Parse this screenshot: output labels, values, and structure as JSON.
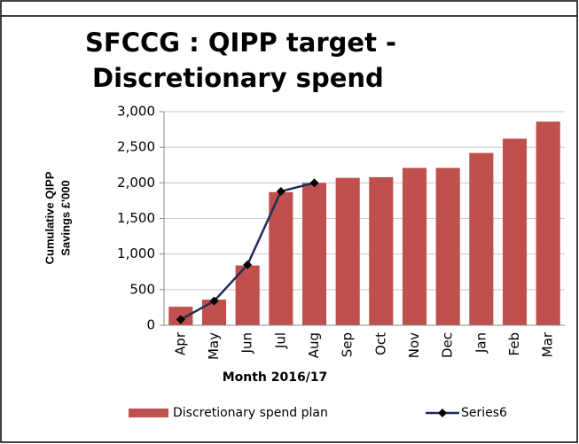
{
  "chart_data": {
    "type": "bar_line",
    "title_lines": [
      "SFCCG : QIPP target  -",
      "Discretionary spend"
    ],
    "ylabel_lines": [
      "Cumulative QIPP",
      "Savings £'000"
    ],
    "xlabel": "Month 2016/17",
    "categories": [
      "Apr",
      "May",
      "Jun",
      "Jul",
      "Aug",
      "Sep",
      "Oct",
      "Nov",
      "Dec",
      "Jan",
      "Feb",
      "Mar"
    ],
    "series": [
      {
        "name": "Discretionary spend plan",
        "type": "bar",
        "color": "#c0504d",
        "values": [
          260,
          360,
          840,
          1870,
          2000,
          2070,
          2080,
          2210,
          2210,
          2420,
          2620,
          2860
        ]
      },
      {
        "name": "Series6",
        "type": "line",
        "color": "#1f2d5a",
        "values": [
          80,
          340,
          850,
          1880,
          2000,
          null,
          null,
          null,
          null,
          null,
          null,
          null
        ]
      }
    ],
    "ylim": [
      0,
      3000
    ],
    "yticks": [
      0,
      500,
      {
        "value": 1000,
        "label": "1,000"
      },
      {
        "value": 1500,
        "label": "1,500"
      },
      {
        "value": 2000,
        "label": "2,000"
      },
      {
        "value": 2500,
        "label": "2,500"
      },
      {
        "value": 3000,
        "label": "3,000"
      }
    ],
    "grid": true,
    "legend": "bottom"
  }
}
